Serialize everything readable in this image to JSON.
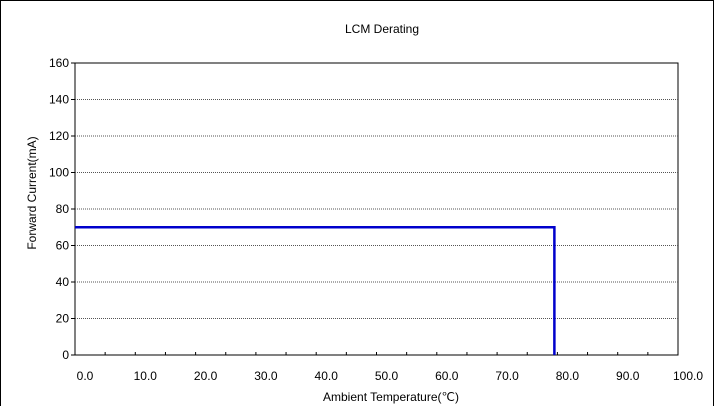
{
  "chart_data": {
    "type": "line",
    "title": "LCM Derating",
    "xlabel": "Ambient Temperature(℃)",
    "ylabel": "Forward Current(mA)",
    "xlim": [
      0,
      100
    ],
    "ylim": [
      0,
      160
    ],
    "x_ticks": [
      "0.0",
      "10.0",
      "20.0",
      "30.0",
      "40.0",
      "50.0",
      "60.0",
      "70.0",
      "80.0",
      "90.0",
      "100.0"
    ],
    "y_ticks": [
      "0",
      "20",
      "40",
      "60",
      "80",
      "100",
      "120",
      "140",
      "160"
    ],
    "grid": "horizontal dotted",
    "series": [
      {
        "color": "#0000cc",
        "x": [
          0,
          79.5,
          79.5
        ],
        "y": [
          70,
          70,
          0
        ]
      }
    ]
  }
}
